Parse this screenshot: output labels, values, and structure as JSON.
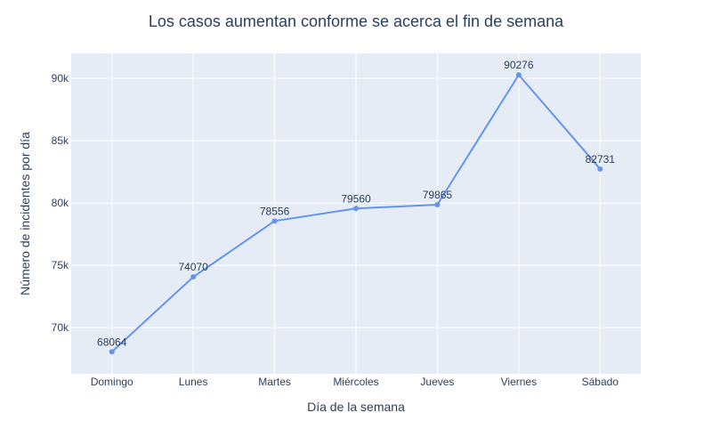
{
  "chart_data": {
    "type": "line",
    "title": "Los casos aumentan conforme se acerca el fin de semana",
    "xlabel": "Día de la semana",
    "ylabel": "Número de incidentes por día",
    "categories": [
      "Domingo",
      "Lunes",
      "Martes",
      "Miércoles",
      "Jueves",
      "Viernes",
      "Sábado"
    ],
    "series": [
      {
        "values": [
          68064,
          74070,
          78556,
          79560,
          79865,
          90276,
          82731
        ]
      }
    ],
    "ylim": [
      66300,
      92000
    ],
    "yticks": [
      70000,
      75000,
      80000,
      85000,
      90000
    ],
    "ytick_labels": [
      "70k",
      "75k",
      "80k",
      "85k",
      "90k"
    ],
    "grid": true,
    "legend": "none",
    "colors": {
      "line": "#6495ED",
      "plot_bg": "#E5ECF6",
      "grid": "#ffffff",
      "text": "#2a3f5f"
    }
  }
}
